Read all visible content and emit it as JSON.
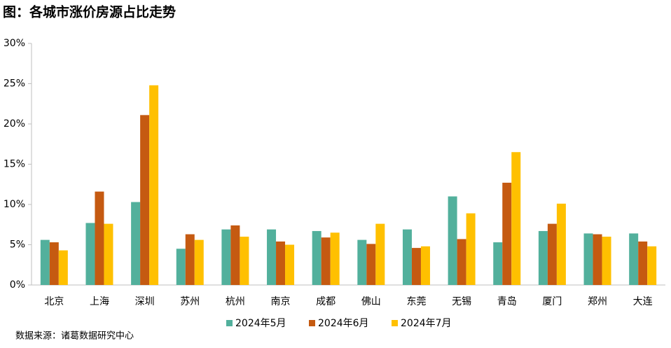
{
  "chart_data": {
    "type": "bar",
    "title": "图：各城市涨价房源占比走势",
    "source": "数据来源：诸葛数据研究中心",
    "categories": [
      "北京",
      "上海",
      "深圳",
      "苏州",
      "杭州",
      "南京",
      "成都",
      "佛山",
      "东莞",
      "无锡",
      "青岛",
      "厦门",
      "郑州",
      "大连"
    ],
    "series": [
      {
        "name": "2024年5月",
        "color": "#52b09c",
        "values": [
          5.6,
          7.7,
          10.3,
          4.5,
          6.9,
          6.9,
          6.7,
          5.6,
          6.9,
          11.0,
          5.3,
          6.7,
          6.4,
          6.4
        ]
      },
      {
        "name": "2024年6月",
        "color": "#c55a11",
        "values": [
          5.3,
          11.6,
          21.1,
          6.3,
          7.4,
          5.4,
          5.9,
          5.1,
          4.6,
          5.7,
          12.7,
          7.6,
          6.3,
          5.4
        ]
      },
      {
        "name": "2024年7月",
        "color": "#ffc000",
        "values": [
          4.3,
          7.6,
          24.8,
          5.6,
          6.0,
          5.0,
          6.5,
          7.6,
          4.8,
          8.9,
          16.5,
          10.1,
          6.0,
          4.8
        ]
      }
    ],
    "ylim": [
      0,
      30
    ],
    "yticks": [
      {
        "value": 0,
        "label": "0%"
      },
      {
        "value": 5,
        "label": "5%"
      },
      {
        "value": 10,
        "label": "10%"
      },
      {
        "value": 15,
        "label": "15%"
      },
      {
        "value": 20,
        "label": "20%"
      },
      {
        "value": 25,
        "label": "25%"
      },
      {
        "value": 30,
        "label": "30%"
      }
    ],
    "legend": "bottom"
  }
}
